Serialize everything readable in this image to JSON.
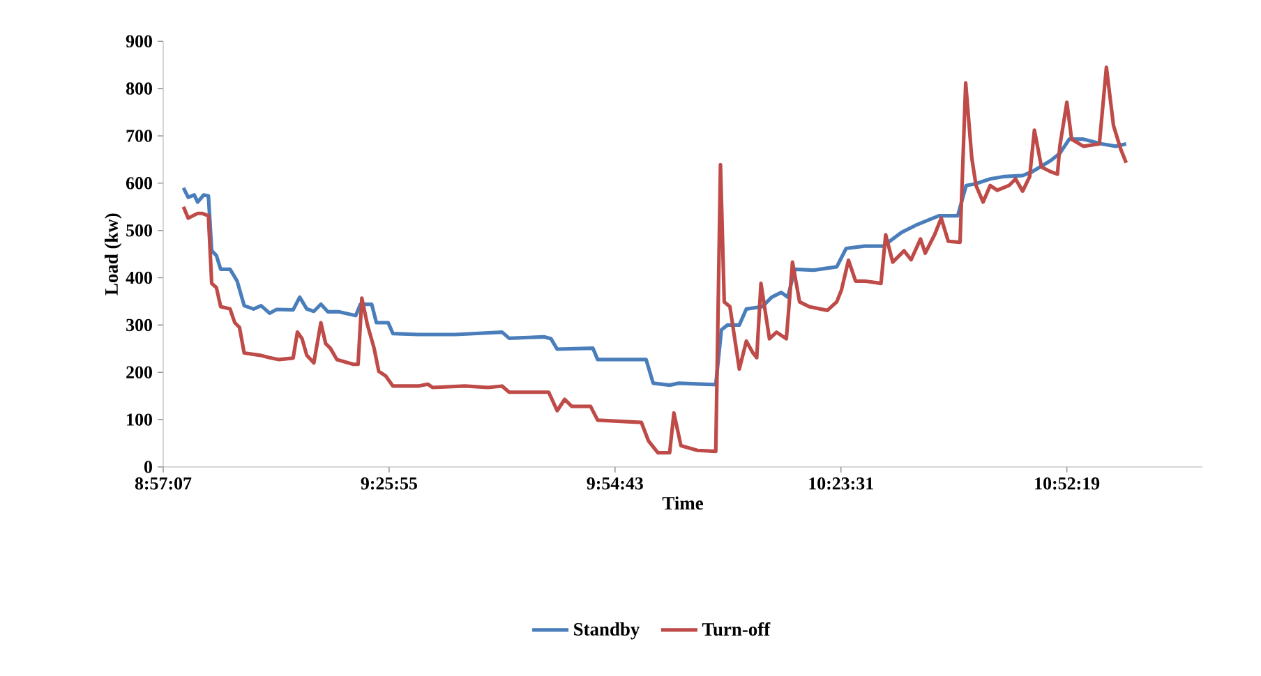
{
  "chart_data": {
    "type": "line",
    "xlabel": "Time",
    "ylabel": "Load (kw)",
    "xlim": [
      8.95194,
      11.16
    ],
    "ylim": [
      0,
      900
    ],
    "xticks": [
      {
        "value": 8.95194,
        "label": "8:57:07"
      },
      {
        "value": 9.43194,
        "label": "9:25:55"
      },
      {
        "value": 9.91194,
        "label": "9:54:43"
      },
      {
        "value": 10.39194,
        "label": "10:23:31"
      },
      {
        "value": 10.87194,
        "label": "10:52:19"
      }
    ],
    "yticks": [
      0,
      100,
      200,
      300,
      400,
      500,
      600,
      700,
      800,
      900
    ],
    "grid": false,
    "legend": "bottom",
    "marker": "none",
    "line_style": "solid",
    "series": [
      {
        "name": "Standby",
        "color": "#4a7ebb",
        "x": [
          8.995,
          9.005,
          9.018,
          9.025,
          9.038,
          9.048,
          9.055,
          9.065,
          9.074,
          9.094,
          9.109,
          9.124,
          9.144,
          9.16,
          9.178,
          9.193,
          9.228,
          9.242,
          9.257,
          9.272,
          9.287,
          9.302,
          9.326,
          9.361,
          9.371,
          9.395,
          9.405,
          9.43,
          9.44,
          9.494,
          9.573,
          9.672,
          9.687,
          9.761,
          9.776,
          9.789,
          9.865,
          9.875,
          9.978,
          9.993,
          10.028,
          10.047,
          10.126,
          10.138,
          10.151,
          10.176,
          10.191,
          10.225,
          10.245,
          10.265,
          10.279,
          10.294,
          10.334,
          10.383,
          10.403,
          10.442,
          10.482,
          10.502,
          10.521,
          10.551,
          10.6,
          10.64,
          10.658,
          10.679,
          10.709,
          10.739,
          10.778,
          10.798,
          10.838,
          10.857,
          10.877,
          10.907,
          10.946,
          10.976,
          10.998
        ],
        "values": [
          590,
          570,
          575,
          560,
          575,
          573,
          457,
          447,
          418,
          418,
          393,
          341,
          334,
          341,
          325,
          333,
          332,
          359,
          334,
          329,
          344,
          328,
          328,
          320,
          344,
          344,
          305,
          305,
          282,
          280,
          280,
          285,
          272,
          275,
          271,
          249,
          251,
          227,
          227,
          177,
          173,
          177,
          174,
          290,
          300,
          300,
          334,
          339,
          359,
          369,
          359,
          418,
          416,
          423,
          462,
          467,
          467,
          482,
          496,
          511,
          531,
          531,
          595,
          599,
          609,
          614,
          616,
          624,
          648,
          663,
          693,
          693,
          683,
          678,
          683
        ]
      },
      {
        "name": "Turn-off",
        "color": "#be4b48",
        "x": [
          8.995,
          9.005,
          9.025,
          9.035,
          9.048,
          9.055,
          9.065,
          9.074,
          9.094,
          9.104,
          9.114,
          9.124,
          9.158,
          9.178,
          9.198,
          9.228,
          9.237,
          9.247,
          9.257,
          9.272,
          9.287,
          9.297,
          9.307,
          9.321,
          9.356,
          9.366,
          9.374,
          9.386,
          9.4,
          9.41,
          9.425,
          9.44,
          9.494,
          9.514,
          9.524,
          9.593,
          9.642,
          9.672,
          9.687,
          9.771,
          9.789,
          9.805,
          9.82,
          9.86,
          9.875,
          9.968,
          9.983,
          10.003,
          10.028,
          10.037,
          10.052,
          10.087,
          10.126,
          10.136,
          10.144,
          10.156,
          10.176,
          10.191,
          10.205,
          10.213,
          10.222,
          10.24,
          10.255,
          10.276,
          10.289,
          10.304,
          10.324,
          10.363,
          10.383,
          10.393,
          10.408,
          10.423,
          10.442,
          10.477,
          10.487,
          10.502,
          10.526,
          10.541,
          10.561,
          10.571,
          10.591,
          10.605,
          10.62,
          10.645,
          10.657,
          10.67,
          10.679,
          10.694,
          10.709,
          10.724,
          10.749,
          10.763,
          10.778,
          10.793,
          10.803,
          10.818,
          10.838,
          10.852,
          10.857,
          10.872,
          10.882,
          10.907,
          10.941,
          10.956,
          10.971,
          10.986,
          10.998
        ],
        "values": [
          550,
          526,
          536,
          536,
          531,
          388,
          379,
          339,
          334,
          305,
          295,
          241,
          236,
          231,
          227,
          230,
          285,
          271,
          236,
          220,
          305,
          261,
          251,
          227,
          217,
          217,
          357,
          300,
          251,
          202,
          192,
          171,
          171,
          175,
          168,
          171,
          168,
          171,
          158,
          158,
          119,
          143,
          128,
          128,
          99,
          94,
          55,
          30,
          30,
          114,
          45,
          35,
          33,
          639,
          349,
          339,
          207,
          266,
          241,
          231,
          388,
          271,
          285,
          271,
          433,
          349,
          339,
          331,
          349,
          374,
          437,
          393,
          393,
          388,
          491,
          433,
          457,
          438,
          482,
          452,
          491,
          526,
          477,
          475,
          812,
          653,
          595,
          560,
          595,
          585,
          595,
          609,
          583,
          614,
          712,
          634,
          624,
          619,
          678,
          771,
          693,
          678,
          683,
          845,
          722,
          673,
          643
        ]
      }
    ]
  }
}
